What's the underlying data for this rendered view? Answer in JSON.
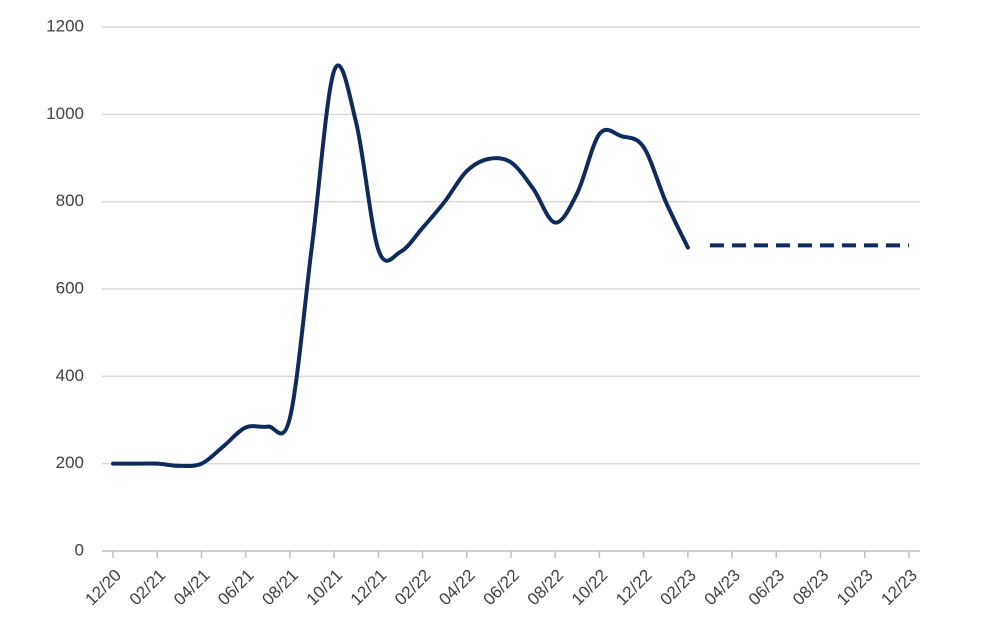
{
  "chart_data": {
    "type": "line",
    "categories": [
      "12/20",
      null,
      "02/21",
      null,
      "04/21",
      null,
      "06/21",
      null,
      "08/21",
      null,
      "10/21",
      null,
      "12/21",
      null,
      "02/22",
      null,
      "04/22",
      null,
      "06/22",
      null,
      "08/22",
      null,
      "10/22",
      null,
      "12/22",
      null,
      "02/23",
      null,
      "04/23",
      null,
      "06/23",
      null,
      "08/23",
      null,
      "10/23",
      null,
      "12/23"
    ],
    "series": [
      {
        "color": "#0f2a5c",
        "dash": false,
        "values": [
          200,
          200,
          200,
          195,
          200,
          240,
          283,
          285,
          305,
          700,
          1100,
          980,
          690,
          685,
          740,
          800,
          870,
          898,
          890,
          830,
          752,
          820,
          955,
          950,
          925,
          800,
          695,
          null,
          null,
          null,
          null,
          null,
          null,
          null,
          null,
          null,
          null
        ]
      },
      {
        "color": "#0f2a5c",
        "dash": true,
        "values": [
          null,
          null,
          null,
          null,
          null,
          null,
          null,
          null,
          null,
          null,
          null,
          null,
          null,
          null,
          null,
          null,
          null,
          null,
          null,
          null,
          null,
          null,
          null,
          null,
          null,
          null,
          null,
          700,
          700,
          700,
          700,
          700,
          700,
          700,
          700,
          700,
          700
        ]
      }
    ],
    "ylim": [
      0,
      1200
    ],
    "yticks": [
      0,
      200,
      400,
      600,
      800,
      1000,
      1200
    ],
    "grid": true
  }
}
